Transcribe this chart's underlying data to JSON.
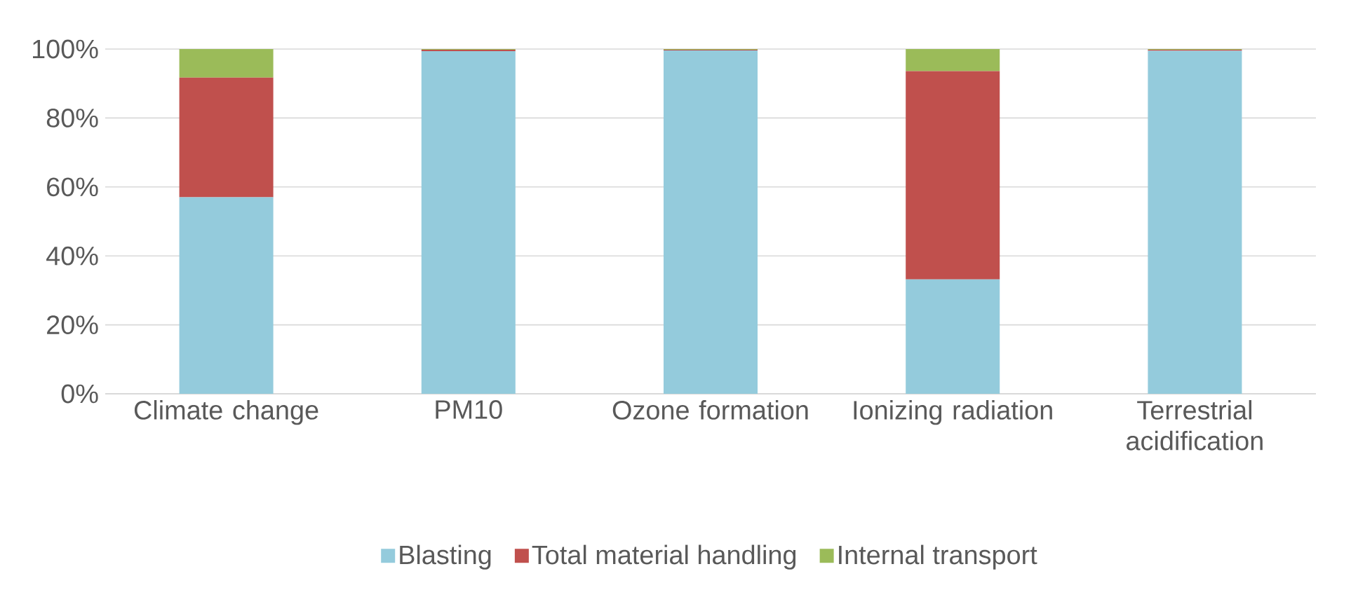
{
  "chart_data": {
    "type": "bar",
    "stacked": true,
    "categories": [
      "Climate change",
      "PM10",
      "Ozone formation",
      "Ionizing radiation",
      "Terrestrial acidification"
    ],
    "series": [
      {
        "name": "Blasting",
        "color": "#94cbdc",
        "values": [
          57,
          99.4,
          99.6,
          33.2,
          99.5
        ]
      },
      {
        "name": "Total material handling",
        "color": "#c0504d",
        "values": [
          34.7,
          0.4,
          0.2,
          60.4,
          0.3
        ]
      },
      {
        "name": "Internal transport",
        "color": "#9bbb59",
        "values": [
          8.3,
          0.2,
          0.2,
          6.4,
          0.2
        ]
      }
    ],
    "ylim": [
      0,
      100
    ],
    "yticks": [
      {
        "value": 0,
        "label": "0%"
      },
      {
        "value": 20,
        "label": "20%"
      },
      {
        "value": 40,
        "label": "40%"
      },
      {
        "value": 60,
        "label": "60%"
      },
      {
        "value": 80,
        "label": "80%"
      },
      {
        "value": 100,
        "label": "100%"
      }
    ],
    "grid": "y",
    "legend": "bottom"
  }
}
